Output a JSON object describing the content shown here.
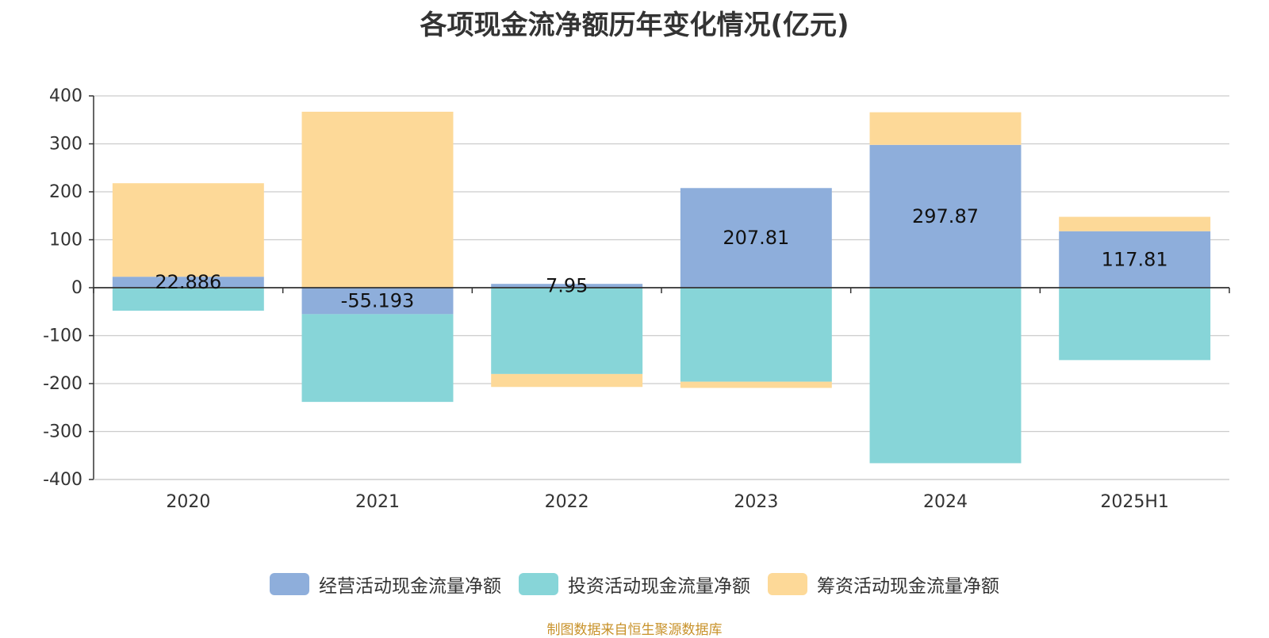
{
  "chart_data": {
    "type": "bar",
    "stacked": true,
    "title": "各项现金流净额历年变化情况(亿元)",
    "categories": [
      "2020",
      "2021",
      "2022",
      "2023",
      "2024",
      "2025H1"
    ],
    "series": [
      {
        "name": "经营活动现金流量净额",
        "color": "#8eaedb",
        "values": [
          22.886,
          -55.193,
          7.95,
          207.81,
          297.87,
          117.81
        ],
        "labels": [
          "22.886",
          "-55.193",
          "7.95",
          "207.81",
          "297.87",
          "117.81"
        ]
      },
      {
        "name": "投资活动现金流量净额",
        "color": "#87d5d8",
        "values": [
          -48,
          -183,
          -180,
          -196,
          -366,
          -151
        ]
      },
      {
        "name": "筹资活动现金流量净额",
        "color": "#fdd998",
        "values": [
          195,
          367,
          -27,
          -13,
          68,
          30
        ]
      }
    ],
    "ylim": [
      -400,
      400
    ],
    "yticks": [
      400,
      300,
      200,
      100,
      0,
      -100,
      -200,
      -300,
      -400
    ],
    "grid": true,
    "legend_position": "bottom-center"
  },
  "footer": {
    "source": "制图数据来自恒生聚源数据库"
  }
}
